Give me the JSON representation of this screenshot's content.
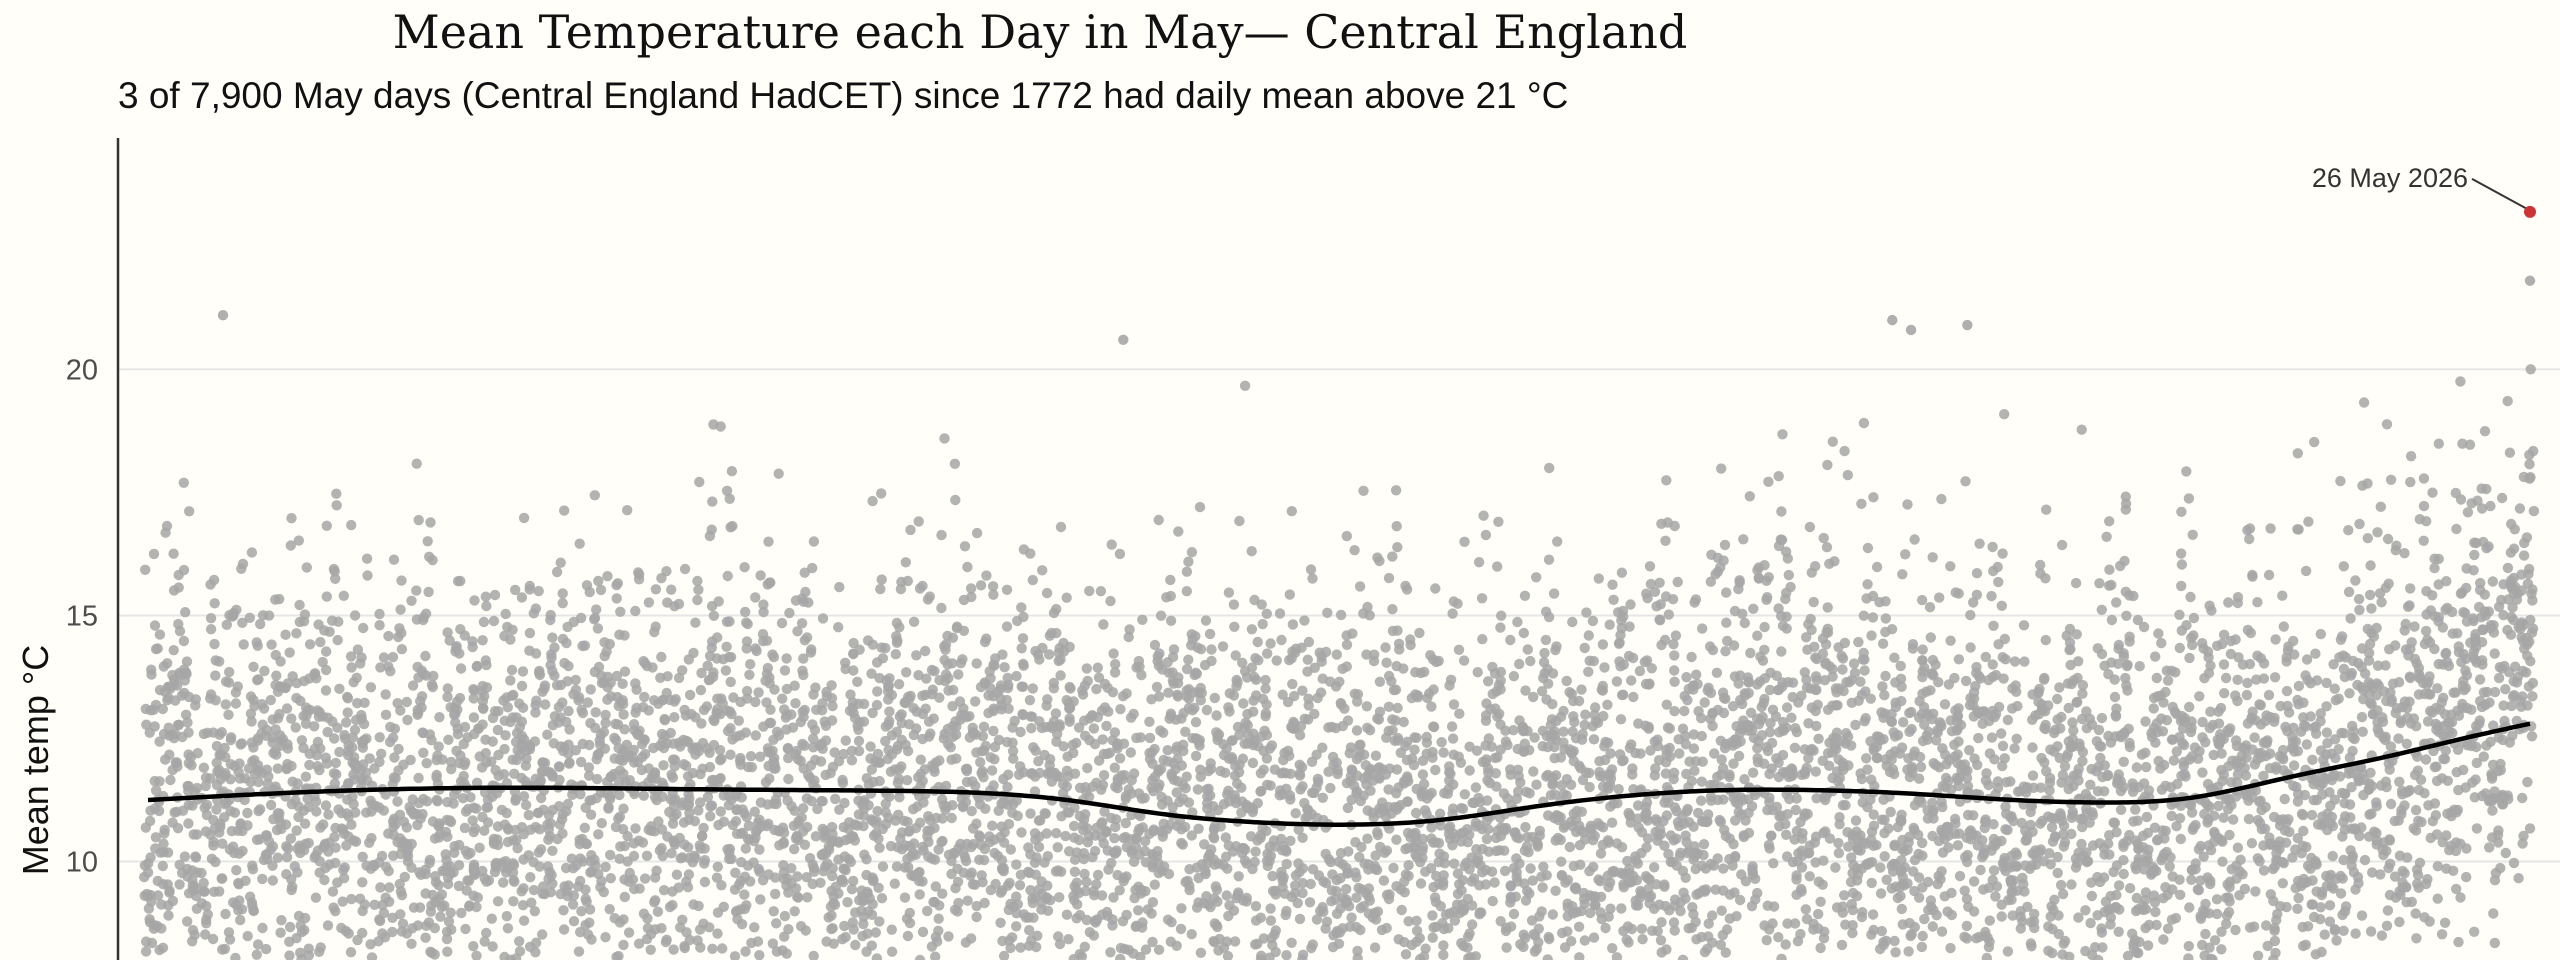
{
  "chart_data": {
    "type": "scatter",
    "title": "Mean Temperature each Day in May— Central England",
    "subtitle": "3 of 7,900 May days (Central England HadCET) since 1772 had daily mean above 21 °C",
    "xlabel": "",
    "ylabel": "Mean temp °C",
    "ylim": [
      8.0,
      24.7
    ],
    "xlim": [
      1765,
      2030
    ],
    "y_ticks": [
      10,
      15,
      20
    ],
    "y_tick_labels": [
      "10",
      "15",
      "20"
    ],
    "grid": true,
    "colors": {
      "background": "#fffef9",
      "points": "#a6a6a6",
      "trend": "#000000",
      "highlight": "#cc3333",
      "grid": "#e6e6e6",
      "axis": "#333333"
    },
    "series": [
      {
        "kind": "trend",
        "x": [
          1772,
          1790,
          1810,
          1830,
          1850,
          1870,
          1880,
          1890,
          1900,
          1910,
          1920,
          1930,
          1940,
          1950,
          1960,
          1970,
          1980,
          1990,
          2000,
          2010,
          2020,
          2026
        ],
        "y": [
          11.25,
          11.42,
          11.5,
          11.47,
          11.44,
          11.25,
          10.97,
          10.8,
          10.75,
          10.85,
          11.12,
          11.34,
          11.45,
          11.45,
          11.38,
          11.26,
          11.2,
          11.3,
          11.7,
          12.1,
          12.55,
          12.8
        ]
      }
    ],
    "highlight": {
      "x": 2026,
      "y": 23.2,
      "label": "26 May 2026"
    },
    "extremes": [
      {
        "x": 1780,
        "y": 21.1
      },
      {
        "x": 1876,
        "y": 20.6
      },
      {
        "x": 1958,
        "y": 21.0
      },
      {
        "x": 1960,
        "y": 20.8
      },
      {
        "x": 1966,
        "y": 20.9
      },
      {
        "x": 2026,
        "y": 21.8
      }
    ]
  }
}
